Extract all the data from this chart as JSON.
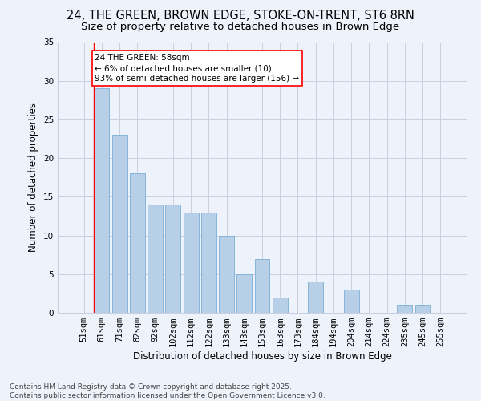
{
  "title_line1": "24, THE GREEN, BROWN EDGE, STOKE-ON-TRENT, ST6 8RN",
  "title_line2": "Size of property relative to detached houses in Brown Edge",
  "xlabel": "Distribution of detached houses by size in Brown Edge",
  "ylabel": "Number of detached properties",
  "categories": [
    "51sqm",
    "61sqm",
    "71sqm",
    "82sqm",
    "92sqm",
    "102sqm",
    "112sqm",
    "122sqm",
    "133sqm",
    "143sqm",
    "153sqm",
    "163sqm",
    "173sqm",
    "184sqm",
    "194sqm",
    "204sqm",
    "214sqm",
    "224sqm",
    "235sqm",
    "245sqm",
    "255sqm"
  ],
  "values": [
    0,
    29,
    23,
    18,
    14,
    14,
    13,
    13,
    10,
    5,
    7,
    2,
    0,
    4,
    0,
    3,
    0,
    0,
    1,
    1,
    0
  ],
  "bar_color": "#b8cfe8",
  "bar_edge_color": "#7aadd4",
  "annotation_text": "24 THE GREEN: 58sqm\n← 6% of detached houses are smaller (10)\n93% of semi-detached houses are larger (156) →",
  "annotation_box_color": "white",
  "annotation_border_color": "red",
  "red_line_x": 0.575,
  "ylim": [
    0,
    35
  ],
  "yticks": [
    0,
    5,
    10,
    15,
    20,
    25,
    30,
    35
  ],
  "footer": "Contains HM Land Registry data © Crown copyright and database right 2025.\nContains public sector information licensed under the Open Government Licence v3.0.",
  "background_color": "#eef2fb",
  "grid_color": "#c8d0e0",
  "title_fontsize": 10.5,
  "subtitle_fontsize": 9.5,
  "axis_label_fontsize": 8.5,
  "tick_fontsize": 7.5,
  "annotation_fontsize": 7.5,
  "footer_fontsize": 6.5
}
